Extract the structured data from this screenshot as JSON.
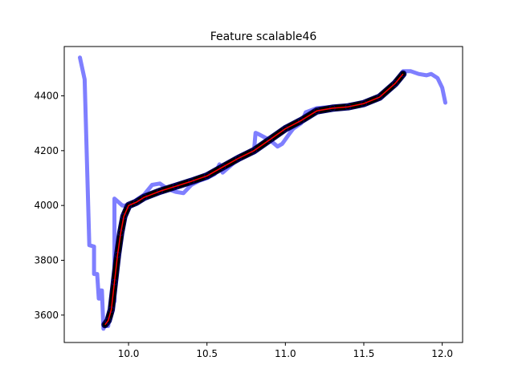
{
  "chart_data": {
    "type": "line",
    "title": "Feature scalable46",
    "xlabel": "",
    "ylabel": "",
    "xlim": [
      9.59,
      12.13
    ],
    "ylim": [
      3500,
      4580
    ],
    "xticks": [
      10.0,
      10.5,
      11.0,
      11.5,
      12.0
    ],
    "xtick_labels": [
      "10.0",
      "10.5",
      "11.0",
      "11.5",
      "12.0"
    ],
    "yticks": [
      3600,
      3800,
      4000,
      4200,
      4400
    ],
    "ytick_labels": [
      "3600",
      "3800",
      "4000",
      "4200",
      "4400"
    ],
    "grid": false,
    "legend": "none",
    "series": [
      {
        "color": "#7f7fff",
        "style": "thick-line",
        "points": [
          [
            9.69,
            4540
          ],
          [
            9.72,
            4460
          ],
          [
            9.75,
            3855
          ],
          [
            9.78,
            3850
          ],
          [
            9.78,
            3750
          ],
          [
            9.8,
            3750
          ],
          [
            9.81,
            3660
          ],
          [
            9.82,
            3660
          ],
          [
            9.82,
            3690
          ],
          [
            9.83,
            3690
          ],
          [
            9.84,
            3550
          ],
          [
            9.85,
            3570
          ],
          [
            9.87,
            3560
          ],
          [
            9.88,
            3600
          ],
          [
            9.89,
            3640
          ],
          [
            9.9,
            3640
          ],
          [
            9.91,
            3650
          ],
          [
            9.91,
            4025
          ],
          [
            9.93,
            4015
          ],
          [
            9.96,
            4000
          ],
          [
            10.0,
            4000
          ],
          [
            10.05,
            4020
          ],
          [
            10.1,
            4040
          ],
          [
            10.15,
            4075
          ],
          [
            10.2,
            4080
          ],
          [
            10.25,
            4060
          ],
          [
            10.3,
            4050
          ],
          [
            10.35,
            4045
          ],
          [
            10.4,
            4075
          ],
          [
            10.45,
            4090
          ],
          [
            10.5,
            4100
          ],
          [
            10.55,
            4115
          ],
          [
            10.58,
            4150
          ],
          [
            10.6,
            4120
          ],
          [
            10.65,
            4145
          ],
          [
            10.7,
            4170
          ],
          [
            10.75,
            4185
          ],
          [
            10.8,
            4200
          ],
          [
            10.81,
            4265
          ],
          [
            10.83,
            4260
          ],
          [
            10.88,
            4245
          ],
          [
            10.92,
            4230
          ],
          [
            10.95,
            4215
          ],
          [
            10.98,
            4225
          ],
          [
            11.03,
            4265
          ],
          [
            11.05,
            4280
          ],
          [
            11.1,
            4300
          ],
          [
            11.13,
            4340
          ],
          [
            11.2,
            4355
          ],
          [
            11.3,
            4360
          ],
          [
            11.4,
            4362
          ],
          [
            11.5,
            4375
          ],
          [
            11.6,
            4395
          ],
          [
            11.65,
            4420
          ],
          [
            11.7,
            4450
          ],
          [
            11.75,
            4490
          ],
          [
            11.8,
            4490
          ],
          [
            11.85,
            4480
          ],
          [
            11.9,
            4475
          ],
          [
            11.93,
            4480
          ],
          [
            11.97,
            4465
          ],
          [
            12.0,
            4430
          ],
          [
            12.02,
            4375
          ]
        ]
      },
      {
        "color": "#000000",
        "style": "dense-markers",
        "points": [
          [
            9.85,
            3565
          ],
          [
            9.87,
            3580
          ],
          [
            9.89,
            3620
          ],
          [
            9.91,
            3720
          ],
          [
            9.93,
            3820
          ],
          [
            9.95,
            3900
          ],
          [
            9.97,
            3960
          ],
          [
            10.0,
            4000
          ],
          [
            10.05,
            4012
          ],
          [
            10.1,
            4030
          ],
          [
            10.2,
            4052
          ],
          [
            10.3,
            4070
          ],
          [
            10.4,
            4088
          ],
          [
            10.5,
            4108
          ],
          [
            10.6,
            4140
          ],
          [
            10.7,
            4172
          ],
          [
            10.8,
            4200
          ],
          [
            10.9,
            4240
          ],
          [
            11.0,
            4280
          ],
          [
            11.1,
            4310
          ],
          [
            11.2,
            4345
          ],
          [
            11.3,
            4355
          ],
          [
            11.4,
            4360
          ],
          [
            11.5,
            4372
          ],
          [
            11.6,
            4395
          ],
          [
            11.7,
            4445
          ],
          [
            11.75,
            4480
          ]
        ]
      },
      {
        "color": "#ff0000",
        "style": "thin-line",
        "points": [
          [
            9.85,
            3565
          ],
          [
            9.87,
            3580
          ],
          [
            9.89,
            3620
          ],
          [
            9.91,
            3720
          ],
          [
            9.93,
            3820
          ],
          [
            9.95,
            3900
          ],
          [
            9.97,
            3960
          ],
          [
            10.0,
            4000
          ],
          [
            10.05,
            4012
          ],
          [
            10.1,
            4030
          ],
          [
            10.2,
            4052
          ],
          [
            10.3,
            4070
          ],
          [
            10.4,
            4088
          ],
          [
            10.5,
            4108
          ],
          [
            10.6,
            4140
          ],
          [
            10.7,
            4172
          ],
          [
            10.8,
            4200
          ],
          [
            10.9,
            4240
          ],
          [
            11.0,
            4280
          ],
          [
            11.1,
            4310
          ],
          [
            11.2,
            4345
          ],
          [
            11.3,
            4355
          ],
          [
            11.4,
            4360
          ],
          [
            11.5,
            4372
          ],
          [
            11.6,
            4395
          ],
          [
            11.7,
            4445
          ],
          [
            11.75,
            4480
          ]
        ]
      }
    ]
  }
}
